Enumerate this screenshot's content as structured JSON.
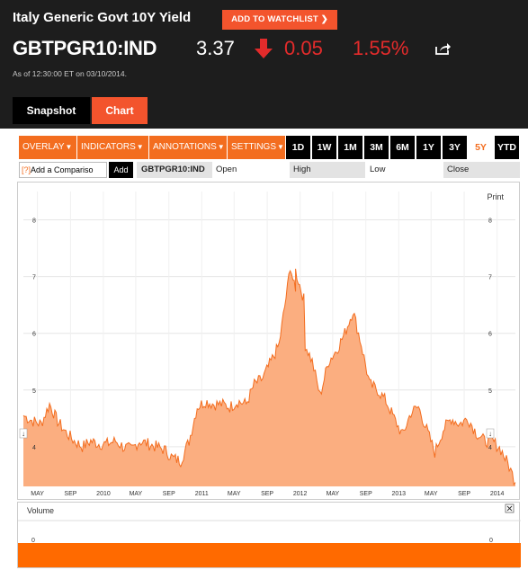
{
  "header": {
    "title": "Italy Generic Govt 10Y Yield",
    "watchlist_label": "ADD TO WATCHLIST",
    "ticker": "GBTPGR10:IND",
    "price": "3.37",
    "change": "0.05",
    "percent_change": "1.55%",
    "as_of": "As of 12:30:00 ET on 03/10/2014.",
    "down_color": "#e32b2b",
    "accent_color": "#f3542d"
  },
  "tabs": [
    {
      "label": "Snapshot",
      "active": false
    },
    {
      "label": "Chart",
      "active": true
    }
  ],
  "toolbar": {
    "menus": [
      "OVERLAY",
      "INDICATORS",
      "ANNOTATIONS",
      "SETTINGS"
    ],
    "ranges": [
      "1D",
      "1W",
      "1M",
      "3M",
      "6M",
      "1Y",
      "3Y",
      "5Y",
      "YTD"
    ],
    "active_range": "5Y"
  },
  "compare": {
    "placeholder": "Add a Compariso",
    "add_label": "Add",
    "ticker": "GBTPGR10:IND",
    "open_label": "Open",
    "high_label": "High",
    "low_label": "Low",
    "close_label": "Close"
  },
  "chart": {
    "print_label": "Print",
    "volume_label": "Volume",
    "volume_zero_label": "0",
    "area_color": "#fbae80",
    "line_color": "#f36d1f"
  },
  "chart_data": {
    "type": "area",
    "ylim": [
      3.3,
      8.5
    ],
    "y_ticks": [
      4,
      5,
      6,
      7,
      8
    ],
    "x_tick_labels": [
      "MAY",
      "SEP",
      "2010",
      "MAY",
      "SEP",
      "2011",
      "MAY",
      "SEP",
      "2012",
      "MAY",
      "SEP",
      "2013",
      "MAY",
      "SEP",
      "2014"
    ],
    "grid": true,
    "series": [
      {
        "x": [
          "2009-03-10",
          "2009-04",
          "2009-05",
          "2009-06",
          "2009-07",
          "2009-08",
          "2009-09",
          "2009-10",
          "2009-11",
          "2009-12",
          "2010-01",
          "2010-02",
          "2010-03",
          "2010-04",
          "2010-05",
          "2010-06",
          "2010-07",
          "2010-08",
          "2010-09",
          "2010-10",
          "2010-11",
          "2010-12",
          "2011-01",
          "2011-02",
          "2011-03",
          "2011-04",
          "2011-05",
          "2011-06",
          "2011-07",
          "2011-08",
          "2011-09",
          "2011-10",
          "2011-11",
          "2011-11-25",
          "2011-12",
          "2011-12-15",
          "2012-01",
          "2012-01-20",
          "2012-02",
          "2012-03",
          "2012-04",
          "2012-05",
          "2012-06",
          "2012-07",
          "2012-08",
          "2012-09",
          "2012-10",
          "2012-11",
          "2012-12",
          "2013-01",
          "2013-02",
          "2013-03",
          "2013-04",
          "2013-05",
          "2013-06",
          "2013-07",
          "2013-08",
          "2013-09",
          "2013-10",
          "2013-11",
          "2013-12",
          "2014-01",
          "2014-02",
          "2014-03-10"
        ],
        "values": [
          4.55,
          4.45,
          4.4,
          4.75,
          4.45,
          4.25,
          4.1,
          4.0,
          4.1,
          4.05,
          4.05,
          4.1,
          4.0,
          3.95,
          4.1,
          4.05,
          4.0,
          3.95,
          3.8,
          3.75,
          4.1,
          4.7,
          4.8,
          4.75,
          4.75,
          4.7,
          4.8,
          4.75,
          5.1,
          5.2,
          5.5,
          5.8,
          6.8,
          7.2,
          6.7,
          7.1,
          6.6,
          5.8,
          5.5,
          4.9,
          5.5,
          5.7,
          6.0,
          6.4,
          5.8,
          5.1,
          5.0,
          4.8,
          4.5,
          4.2,
          4.6,
          4.7,
          4.3,
          3.9,
          4.3,
          4.5,
          4.4,
          4.5,
          4.25,
          4.1,
          4.1,
          3.95,
          3.65,
          3.37
        ]
      }
    ]
  }
}
